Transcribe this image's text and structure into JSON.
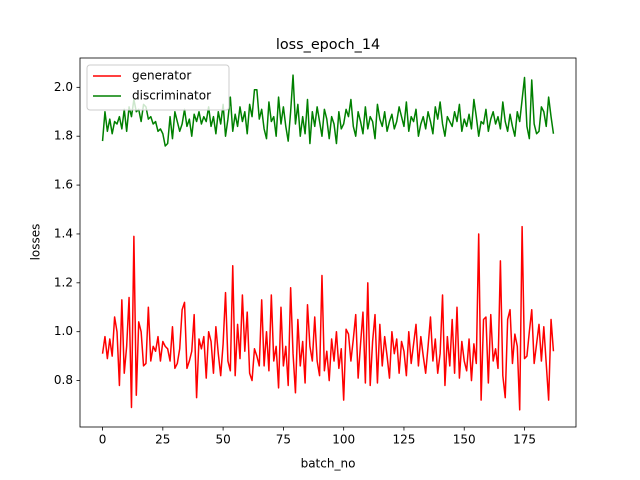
{
  "chart_data": {
    "type": "line",
    "title": "loss_epoch_14",
    "xlabel": "batch_no",
    "ylabel": "losses",
    "x": [
      0,
      1,
      2,
      3,
      4,
      5,
      6,
      7,
      8,
      9,
      10,
      11,
      12,
      13,
      14,
      15,
      16,
      17,
      18,
      19,
      20,
      21,
      22,
      23,
      24,
      25,
      26,
      27,
      28,
      29,
      30,
      31,
      32,
      33,
      34,
      35,
      36,
      37,
      38,
      39,
      40,
      41,
      42,
      43,
      44,
      45,
      46,
      47,
      48,
      49,
      50,
      51,
      52,
      53,
      54,
      55,
      56,
      57,
      58,
      59,
      60,
      61,
      62,
      63,
      64,
      65,
      66,
      67,
      68,
      69,
      70,
      71,
      72,
      73,
      74,
      75,
      76,
      77,
      78,
      79,
      80,
      81,
      82,
      83,
      84,
      85,
      86,
      87,
      88,
      89,
      90,
      91,
      92,
      93,
      94,
      95,
      96,
      97,
      98,
      99,
      100,
      101,
      102,
      103,
      104,
      105,
      106,
      107,
      108,
      109,
      110,
      111,
      112,
      113,
      114,
      115,
      116,
      117,
      118,
      119,
      120,
      121,
      122,
      123,
      124,
      125,
      126,
      127,
      128,
      129,
      130,
      131,
      132,
      133,
      134,
      135,
      136,
      137,
      138,
      139,
      140,
      141,
      142,
      143,
      144,
      145,
      146,
      147,
      148,
      149,
      150,
      151,
      152,
      153,
      154,
      155,
      156,
      157,
      158,
      159,
      160,
      161,
      162,
      163,
      164,
      165,
      166,
      167,
      168,
      169,
      170,
      171,
      172,
      173,
      174,
      175,
      176,
      177,
      178,
      179,
      180,
      181,
      182,
      183,
      184,
      185,
      186,
      187
    ],
    "series": [
      {
        "name": "generator",
        "color": "#ff0000",
        "values": [
          0.91,
          0.98,
          0.89,
          0.97,
          0.9,
          1.06,
          1.0,
          0.78,
          1.13,
          0.83,
          0.94,
          1.14,
          0.69,
          1.39,
          0.74,
          1.04,
          1.0,
          0.86,
          0.87,
          1.1,
          0.88,
          0.94,
          0.92,
          0.98,
          0.88,
          0.96,
          0.94,
          0.93,
          0.88,
          1.02,
          0.85,
          0.87,
          0.93,
          1.09,
          1.12,
          0.85,
          0.88,
          0.92,
          1.07,
          0.73,
          0.97,
          0.93,
          0.98,
          0.81,
          1.0,
          0.96,
          0.83,
          1.02,
          0.91,
          0.82,
          0.95,
          1.16,
          0.88,
          0.84,
          1.27,
          0.82,
          1.03,
          0.89,
          1.15,
          0.92,
          1.08,
          0.83,
          0.8,
          0.93,
          0.9,
          0.86,
          1.13,
          0.86,
          1.0,
          0.84,
          1.15,
          0.88,
          0.94,
          0.77,
          1.1,
          0.86,
          0.94,
          0.78,
          1.18,
          0.91,
          0.75,
          1.05,
          0.86,
          0.96,
          0.79,
          1.11,
          0.94,
          0.88,
          1.06,
          0.88,
          0.82,
          1.23,
          0.84,
          0.92,
          0.8,
          0.97,
          0.88,
          1.0,
          0.85,
          0.93,
          0.72,
          1.01,
          0.99,
          0.88,
          0.97,
          1.07,
          0.81,
          0.95,
          1.08,
          0.79,
          1.2,
          0.78,
          0.96,
          1.07,
          0.79,
          1.03,
          0.86,
          0.98,
          0.9,
          0.81,
          1.0,
          0.91,
          0.97,
          0.83,
          0.96,
          0.92,
          0.82,
          1.0,
          0.87,
          0.95,
          1.03,
          0.86,
          0.98,
          0.9,
          0.83,
          0.94,
          1.06,
          0.88,
          0.97,
          0.83,
          0.91,
          1.15,
          0.78,
          0.98,
          0.86,
          1.05,
          0.83,
          1.1,
          0.81,
          0.96,
          0.88,
          0.84,
          0.97,
          0.8,
          0.95,
          0.87,
          1.4,
          0.72,
          1.05,
          1.06,
          0.79,
          1.07,
          0.88,
          0.93,
          0.85,
          1.29,
          0.82,
          0.73,
          1.05,
          1.09,
          0.87,
          0.99,
          0.94,
          0.68,
          1.43,
          0.89,
          0.9,
          1.0,
          1.09,
          0.87,
          0.95,
          1.03,
          0.88,
          1.02,
          0.87,
          0.72,
          1.05,
          0.92
        ]
      },
      {
        "name": "discriminator",
        "color": "#008000",
        "values": [
          1.78,
          1.9,
          1.82,
          1.87,
          1.81,
          1.86,
          1.85,
          1.88,
          1.83,
          1.91,
          1.82,
          1.92,
          1.88,
          1.95,
          1.9,
          1.91,
          1.86,
          1.93,
          1.92,
          1.87,
          1.88,
          1.85,
          1.86,
          1.82,
          1.83,
          1.81,
          1.76,
          1.77,
          1.88,
          1.79,
          1.9,
          1.86,
          1.82,
          1.85,
          1.91,
          1.84,
          1.87,
          1.8,
          1.89,
          1.86,
          1.9,
          1.85,
          1.88,
          1.86,
          1.92,
          1.84,
          1.88,
          1.81,
          1.9,
          1.85,
          1.93,
          1.8,
          1.87,
          1.96,
          1.82,
          1.89,
          1.84,
          1.92,
          1.86,
          1.9,
          1.81,
          1.93,
          1.88,
          1.99,
          1.99,
          1.87,
          1.91,
          1.83,
          1.79,
          1.94,
          1.86,
          1.88,
          1.8,
          1.96,
          1.85,
          1.92,
          1.84,
          1.78,
          1.9,
          2.05,
          1.85,
          1.93,
          1.8,
          1.88,
          1.81,
          1.95,
          1.77,
          1.9,
          1.84,
          1.92,
          1.86,
          1.8,
          1.91,
          1.87,
          1.79,
          1.88,
          1.85,
          1.77,
          1.9,
          1.83,
          1.85,
          1.91,
          1.88,
          1.95,
          1.84,
          1.8,
          1.9,
          1.86,
          1.81,
          1.92,
          1.83,
          1.88,
          1.86,
          1.79,
          1.93,
          1.87,
          1.84,
          1.9,
          1.82,
          1.86,
          1.89,
          1.83,
          1.86,
          1.92,
          1.88,
          1.84,
          1.94,
          1.82,
          1.88,
          1.86,
          1.91,
          1.8,
          1.85,
          1.88,
          1.83,
          1.9,
          1.86,
          1.81,
          1.92,
          1.87,
          1.94,
          1.85,
          1.8,
          1.88,
          1.86,
          1.84,
          1.9,
          1.86,
          1.93,
          1.82,
          1.87,
          1.84,
          1.89,
          1.83,
          1.95,
          1.88,
          1.8,
          1.86,
          1.85,
          1.91,
          1.82,
          1.87,
          1.9,
          1.85,
          1.88,
          1.83,
          1.94,
          1.86,
          1.82,
          1.89,
          1.84,
          1.8,
          1.9,
          1.86,
          1.95,
          2.04,
          1.84,
          1.79,
          2.03,
          1.85,
          1.81,
          1.82,
          1.92,
          1.9,
          1.84,
          1.96,
          1.88,
          1.81
        ]
      }
    ],
    "xlim": [
      -9.35,
      196.35
    ],
    "xticks": [
      0,
      25,
      50,
      75,
      100,
      125,
      150,
      175
    ],
    "ylim": [
      0.61,
      2.12
    ],
    "yticks": [
      0.8,
      {
        "value": 1.0,
        "label": "1.0"
      },
      1.2,
      1.4,
      1.6,
      1.8,
      {
        "value": 2.0,
        "label": "2.0"
      }
    ],
    "legend": "upper left"
  }
}
